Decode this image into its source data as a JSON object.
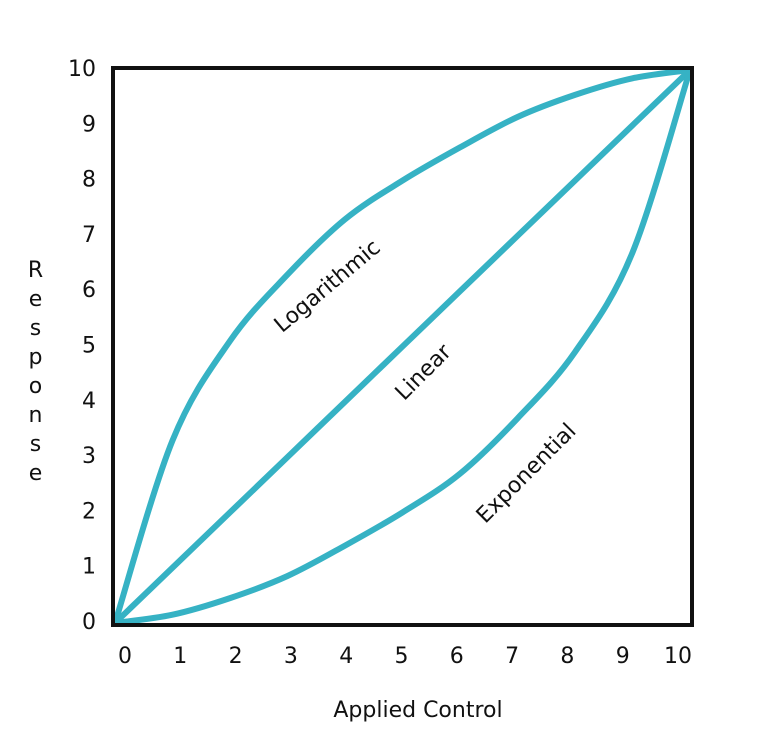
{
  "chart_data": {
    "type": "line",
    "x_label": "Applied Control",
    "y_label": "Response",
    "x": [
      0,
      1,
      2,
      3,
      4,
      5,
      6,
      7,
      8,
      9,
      10
    ],
    "series": [
      {
        "name": "Logarithmic",
        "color": "#36b2c4",
        "values": [
          0,
          3.3,
          5.1,
          6.3,
          7.3,
          8.0,
          8.6,
          9.15,
          9.55,
          9.85,
          10
        ]
      },
      {
        "name": "Linear",
        "color": "#36b2c4",
        "values": [
          0,
          1,
          2,
          3,
          4,
          5,
          6,
          7,
          8,
          9,
          10
        ]
      },
      {
        "name": "Exponential",
        "color": "#36b2c4",
        "values": [
          0,
          0.15,
          0.45,
          0.85,
          1.4,
          2.0,
          2.7,
          3.7,
          4.9,
          6.7,
          10
        ]
      }
    ],
    "xlim": [
      0,
      10
    ],
    "ylim": [
      0,
      10
    ],
    "xticks": [
      0,
      1,
      2,
      3,
      4,
      5,
      6,
      7,
      8,
      9,
      10
    ],
    "yticks": [
      0,
      1,
      2,
      3,
      4,
      5,
      6,
      7,
      8,
      9,
      10
    ]
  }
}
